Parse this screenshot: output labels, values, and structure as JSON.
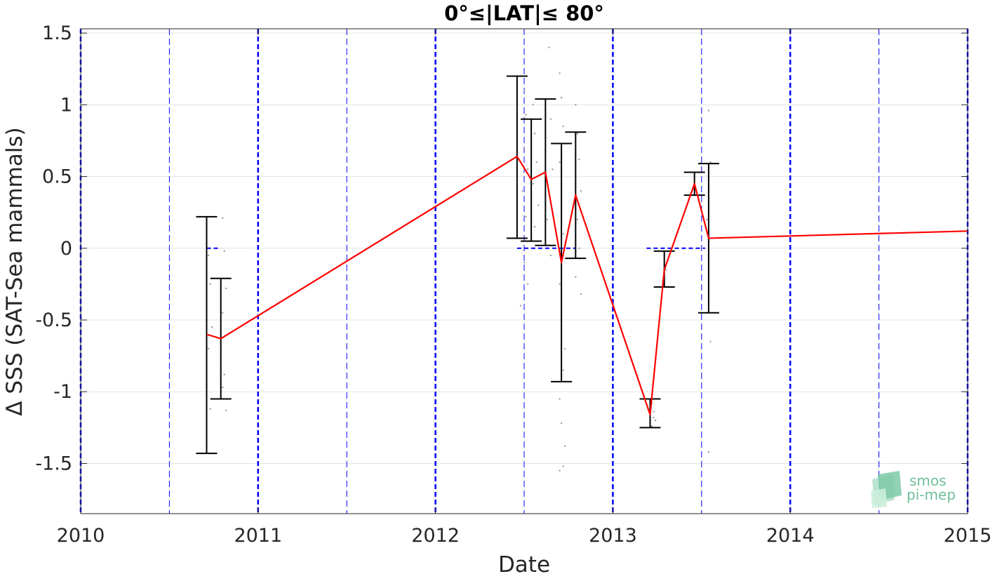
{
  "chart_data": {
    "type": "line",
    "title": "0°≤|LAT|≤ 80°",
    "xlabel": "Date",
    "ylabel": "Δ SSS (SAT-Sea mammals)",
    "xlim": [
      2010,
      2015
    ],
    "ylim": [
      -1.85,
      1.53
    ],
    "x_ticks": [
      2010,
      2011,
      2012,
      2013,
      2014,
      2015
    ],
    "x_tick_labels": [
      "2010",
      "2011",
      "2012",
      "2013",
      "2014",
      "2015"
    ],
    "y_ticks": [
      -1.5,
      -1,
      -0.5,
      0,
      0.5,
      1,
      1.5
    ],
    "y_tick_labels": [
      "-1.5",
      "-1",
      "-0.5",
      "0",
      "0.5",
      "1",
      "1.5"
    ],
    "grid": true,
    "year_lines": [
      2010,
      2011,
      2012,
      2013,
      2014,
      2015
    ],
    "half_year_lines": [
      2010.5,
      2011.5,
      2012.5,
      2013.5,
      2014.5
    ],
    "zero_segments": [
      [
        2010.71,
        2010.79
      ],
      [
        2012.46,
        2012.79
      ],
      [
        2013.19,
        2013.52
      ]
    ],
    "series": [
      {
        "style": "mean-line",
        "color": "#ff0000",
        "x": [
          2010.71,
          2010.79,
          2012.46,
          2012.54,
          2012.62,
          2012.71,
          2012.79,
          2013.21,
          2013.29,
          2013.46,
          2013.54,
          2015.0
        ],
        "y": [
          -0.6,
          -0.63,
          0.64,
          0.48,
          0.53,
          -0.1,
          0.37,
          -1.16,
          -0.15,
          0.45,
          0.07,
          0.12
        ]
      }
    ],
    "error_bars": {
      "color": "#000000",
      "x": [
        2010.71,
        2010.79,
        2012.46,
        2012.54,
        2012.62,
        2012.71,
        2012.79,
        2013.21,
        2013.29,
        2013.46,
        2013.54
      ],
      "lower": [
        -1.43,
        -1.05,
        0.07,
        0.05,
        0.02,
        -0.93,
        -0.07,
        -1.25,
        -0.27,
        0.37,
        -0.45
      ],
      "upper": [
        0.22,
        -0.21,
        1.2,
        0.9,
        1.04,
        0.73,
        0.81,
        -1.05,
        -0.02,
        0.53,
        0.59
      ]
    },
    "scatter": {
      "color": "#9a9a9a",
      "x": [
        2010.71,
        2010.72,
        2010.73,
        2010.74,
        2010.72,
        2010.71,
        2010.73,
        2010.8,
        2010.81,
        2010.82,
        2010.8,
        2010.79,
        2010.81,
        2010.82,
        2010.8,
        2012.5,
        2012.51,
        2012.5,
        2012.52,
        2012.49,
        2012.51,
        2012.53,
        2012.5,
        2012.52,
        2012.48,
        2012.55,
        2012.56,
        2012.57,
        2012.55,
        2012.58,
        2012.56,
        2012.64,
        2012.65,
        2012.66,
        2012.63,
        2012.65,
        2012.7,
        2012.71,
        2012.72,
        2012.7,
        2012.71,
        2012.72,
        2012.7,
        2012.71,
        2012.73,
        2012.72,
        2012.7,
        2012.71,
        2012.73,
        2012.72,
        2012.7,
        2012.79,
        2012.8,
        2012.81,
        2012.82,
        2012.8,
        2012.81,
        2012.79,
        2012.82,
        2013.22,
        2013.23,
        2013.24,
        2013.22,
        2013.23,
        2013.29,
        2013.3,
        2013.28,
        2013.54,
        2013.55,
        2013.53,
        2013.54,
        2013.55,
        2013.54
      ],
      "y": [
        0.2,
        -0.05,
        -0.25,
        -0.55,
        -0.7,
        -0.95,
        -1.12,
        0.21,
        -0.02,
        -0.28,
        -0.45,
        -0.7,
        -0.88,
        -1.13,
        -0.97,
        1.1,
        0.93,
        0.7,
        0.55,
        0.4,
        0.22,
        0.05,
        -0.1,
        -0.25,
        -0.4,
        1.0,
        0.8,
        0.6,
        0.45,
        0.3,
        0.15,
        1.4,
        0.9,
        0.55,
        0.2,
        -0.05,
        1.22,
        1.05,
        0.85,
        0.6,
        0.35,
        0.1,
        -0.25,
        -0.48,
        -0.7,
        -0.85,
        -1.05,
        -1.22,
        -1.38,
        -1.52,
        -1.55,
        1.0,
        0.8,
        0.62,
        0.4,
        0.2,
        0.0,
        -0.2,
        -0.32,
        -1.08,
        -1.14,
        -1.2,
        -1.24,
        -1.18,
        -0.05,
        -0.15,
        -0.23,
        0.96,
        0.6,
        0.2,
        -0.3,
        -0.65,
        -1.42
      ]
    }
  },
  "logo": {
    "line1": "smos",
    "line2": "pi-mep",
    "color": "#6fbf9a"
  }
}
